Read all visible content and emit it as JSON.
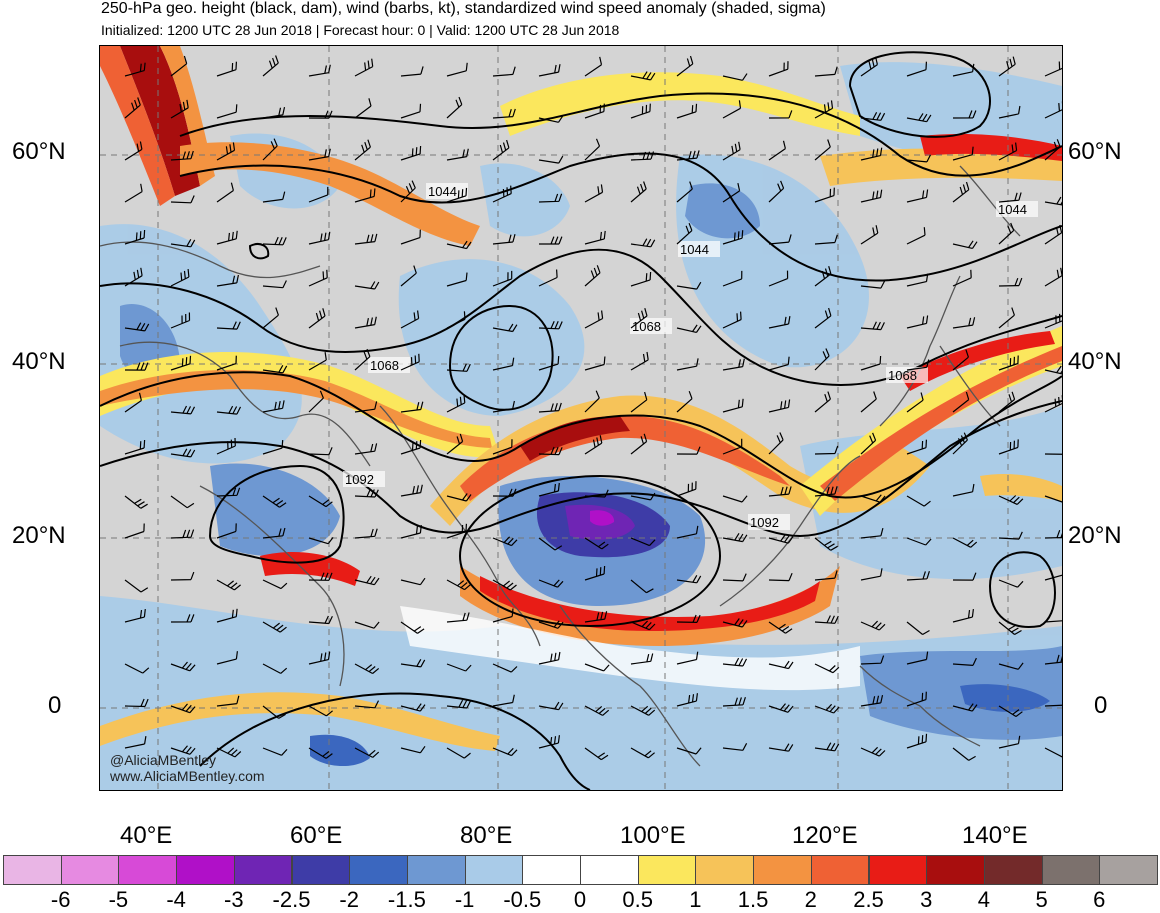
{
  "title": "250-hPa geo. height (black, dam), wind (barbs, kt), standardized wind speed anomaly (shaded, sigma)",
  "subtitle": "Initialized: 1200 UTC 28 Jun 2018 | Forecast hour: 0 | Valid: 1200 UTC 28 Jun 2018",
  "latitudes_left": [
    "60°N",
    "40°N",
    "20°N",
    "0"
  ],
  "latitudes_right": [
    "60°N",
    "40°N",
    "20°N",
    "0"
  ],
  "longitudes": [
    "40°E",
    "60°E",
    "80°E",
    "100°E",
    "120°E",
    "140°E"
  ],
  "contour_labels": [
    "1044",
    "1044",
    "1044",
    "1068",
    "1068",
    "1068",
    "1092",
    "1092"
  ],
  "credit": {
    "handle": "@AliciaMBentley",
    "site": "www.AliciaMBentley.com"
  },
  "colorbar": {
    "colors": [
      "#e9b5e5",
      "#e68ae1",
      "#d74ad7",
      "#b010c8",
      "#6f25b4",
      "#3e3ca7",
      "#3b67bf",
      "#6e98d2",
      "#a9cbe8",
      "#ffffff",
      "#ffffff",
      "#fbe75d",
      "#f6c359",
      "#f39341",
      "#ef6134",
      "#e81c16",
      "#a80e0e",
      "#732a2a",
      "#7c716d",
      "#a7a19f"
    ],
    "labels": [
      "-6",
      "-5",
      "-4",
      "-3",
      "-2.5",
      "-2",
      "-1.5",
      "-1",
      "-0.5",
      "0",
      "0.5",
      "1",
      "1.5",
      "2",
      "2.5",
      "3",
      "4",
      "5",
      "6"
    ]
  }
}
